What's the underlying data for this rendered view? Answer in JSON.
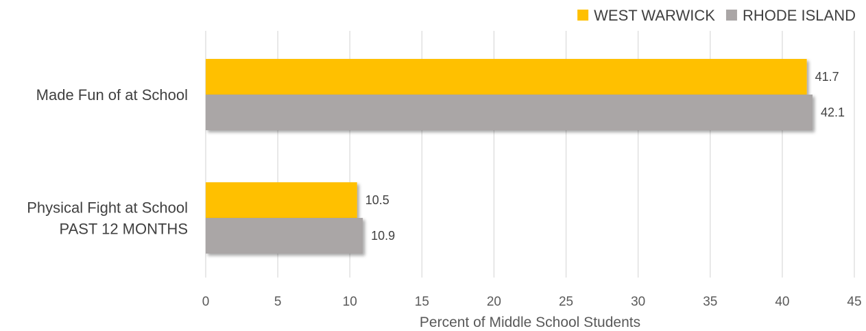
{
  "chart_data": {
    "type": "bar",
    "orientation": "horizontal",
    "categories": [
      [
        "Made Fun of at School"
      ],
      [
        "Physical Fight at School",
        "PAST 12 MONTHS"
      ]
    ],
    "series": [
      {
        "name": "WEST WARWICK",
        "values": [
          41.7,
          10.5
        ],
        "color": "#ffc000"
      },
      {
        "name": "RHODE ISLAND",
        "values": [
          42.1,
          10.9
        ],
        "color": "#aaa6a6"
      }
    ],
    "xlabel": "Percent of Middle School Students",
    "xlim": [
      0,
      45
    ],
    "xticks": [
      0,
      5,
      10,
      15,
      20,
      25,
      30,
      35,
      40,
      45
    ],
    "grid": true,
    "legend_position": "top-right"
  }
}
